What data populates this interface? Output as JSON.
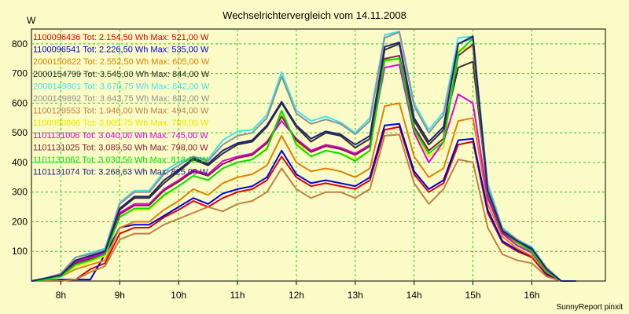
{
  "chart_data": {
    "type": "line",
    "title": "Wechselrichtervergleich vom 14.11.2008",
    "ylabel": "W",
    "xlabel": "",
    "x_unit": "hour",
    "xlim": [
      7.5,
      17.25
    ],
    "ylim": [
      0,
      850
    ],
    "x_ticks": [
      8,
      9,
      10,
      11,
      12,
      13,
      14,
      15,
      16
    ],
    "x_tick_labels": [
      "8h",
      "9h",
      "10h",
      "11h",
      "12h",
      "13h",
      "14h",
      "15h",
      "16h"
    ],
    "y_ticks": [
      100,
      200,
      300,
      400,
      500,
      600,
      700,
      800
    ],
    "y_tick_labels": [
      "100",
      "200",
      "300",
      "400",
      "500",
      "600",
      "700",
      "800"
    ],
    "grid": true,
    "legend_position": "top-left",
    "x": [
      7.5,
      7.75,
      8.0,
      8.25,
      8.5,
      8.75,
      9.0,
      9.25,
      9.5,
      9.75,
      10.0,
      10.25,
      10.5,
      10.75,
      11.0,
      11.25,
      11.5,
      11.75,
      12.0,
      12.25,
      12.5,
      12.75,
      13.0,
      13.25,
      13.5,
      13.75,
      14.0,
      14.25,
      14.5,
      14.75,
      15.0,
      15.25,
      15.5,
      15.75,
      16.0,
      16.25,
      16.5,
      16.75
    ],
    "series": [
      {
        "name": "1100096436 Tot: 2.154,50 Wh Max: 521,00 W",
        "color": "#e00000",
        "values": [
          0,
          0,
          0,
          5,
          40,
          60,
          160,
          180,
          180,
          215,
          240,
          270,
          250,
          280,
          300,
          310,
          340,
          420,
          350,
          320,
          330,
          320,
          310,
          340,
          510,
          520,
          360,
          300,
          330,
          460,
          470,
          230,
          130,
          100,
          80,
          20,
          0,
          0
        ]
      },
      {
        "name": "1100096541 Tot: 2.226,50 Wh Max: 535,00 W",
        "color": "#0000e0",
        "values": [
          0,
          0,
          5,
          5,
          5,
          90,
          180,
          190,
          190,
          220,
          250,
          280,
          260,
          295,
          310,
          320,
          350,
          440,
          360,
          330,
          340,
          330,
          320,
          350,
          525,
          530,
          370,
          310,
          340,
          475,
          480,
          240,
          135,
          105,
          85,
          25,
          0,
          0
        ]
      },
      {
        "name": "2000150622 Tot: 2.552,50 Wh Max: 605,00 W",
        "color": "#e08000",
        "values": [
          0,
          5,
          15,
          40,
          55,
          70,
          180,
          200,
          200,
          240,
          270,
          310,
          290,
          330,
          350,
          360,
          390,
          490,
          400,
          370,
          380,
          370,
          350,
          380,
          590,
          600,
          420,
          350,
          380,
          540,
          550,
          260,
          150,
          110,
          85,
          30,
          0,
          0
        ]
      },
      {
        "name": "2000154799 Tot: 3.545,00 Wh Max: 844,00 W",
        "color": "#303030",
        "values": [
          0,
          10,
          20,
          70,
          85,
          100,
          240,
          280,
          280,
          330,
          370,
          410,
          390,
          430,
          460,
          470,
          520,
          600,
          520,
          470,
          500,
          490,
          450,
          480,
          780,
          800,
          540,
          460,
          510,
          720,
          740,
          300,
          170,
          130,
          105,
          40,
          0,
          0
        ]
      },
      {
        "name": "2000149801 Tot: 3.670,75 Wh Max: 842,00 W",
        "color": "#40e0f0",
        "values": [
          0,
          10,
          25,
          80,
          95,
          110,
          265,
          305,
          305,
          370,
          400,
          420,
          410,
          475,
          505,
          510,
          560,
          705,
          575,
          540,
          555,
          535,
          500,
          550,
          830,
          842,
          600,
          510,
          570,
          820,
          825,
          330,
          180,
          140,
          115,
          45,
          0,
          0
        ]
      },
      {
        "name": "2000149892 Tot: 3.643,75 Wh Max: 842,00 W",
        "color": "#909090",
        "values": [
          0,
          10,
          25,
          80,
          90,
          105,
          260,
          300,
          300,
          360,
          390,
          420,
          405,
          460,
          490,
          500,
          550,
          690,
          565,
          530,
          545,
          530,
          495,
          540,
          820,
          840,
          590,
          500,
          560,
          800,
          820,
          320,
          175,
          140,
          110,
          45,
          0,
          0
        ]
      },
      {
        "name": "1100129553 Tot: 1.946,00 Wh Max: 494,00 W",
        "color": "#c08040",
        "values": [
          0,
          0,
          0,
          5,
          30,
          50,
          140,
          160,
          160,
          190,
          210,
          230,
          250,
          235,
          260,
          270,
          300,
          380,
          310,
          280,
          300,
          300,
          280,
          310,
          490,
          494,
          330,
          260,
          310,
          410,
          400,
          180,
          90,
          70,
          60,
          15,
          0,
          0
        ]
      },
      {
        "name": "1100090866 Tot: 3.005,75 Wh Max: 789,00 W",
        "color": "#e8e800",
        "values": [
          0,
          5,
          15,
          50,
          65,
          85,
          220,
          240,
          240,
          285,
          320,
          355,
          340,
          380,
          400,
          410,
          450,
          560,
          470,
          420,
          440,
          430,
          410,
          440,
          740,
          750,
          500,
          420,
          450,
          780,
          789,
          290,
          160,
          125,
          100,
          35,
          0,
          0
        ]
      },
      {
        "name": "1101131006 Tot: 3.040,00 Wh Max: 745,00 W",
        "color": "#e000e0",
        "values": [
          0,
          5,
          20,
          65,
          80,
          95,
          230,
          260,
          260,
          310,
          340,
          375,
          360,
          405,
          420,
          430,
          470,
          540,
          480,
          440,
          460,
          450,
          430,
          460,
          720,
          730,
          500,
          400,
          470,
          630,
          600,
          280,
          160,
          120,
          95,
          35,
          0,
          0
        ]
      },
      {
        "name": "1101131025 Tot: 3.089,50 Wh Max: 798,00 W",
        "color": "#802040",
        "values": [
          0,
          5,
          20,
          60,
          75,
          90,
          225,
          255,
          255,
          305,
          335,
          370,
          355,
          395,
          415,
          425,
          465,
          555,
          475,
          435,
          455,
          445,
          425,
          455,
          750,
          760,
          520,
          440,
          480,
          760,
          798,
          295,
          165,
          130,
          100,
          35,
          0,
          0
        ]
      },
      {
        "name": "1101131062 Tot: 3.030,50 Wh Max: 818,00 W",
        "color": "#00e000",
        "values": [
          0,
          5,
          15,
          55,
          70,
          90,
          215,
          245,
          245,
          290,
          320,
          355,
          340,
          380,
          400,
          410,
          445,
          575,
          460,
          420,
          440,
          430,
          405,
          440,
          745,
          750,
          510,
          430,
          470,
          770,
          818,
          300,
          170,
          130,
          100,
          35,
          0,
          0
        ]
      },
      {
        "name": "1101131074 Tot: 3.268,63 Wh Max: 825,00 W",
        "color": "#202080",
        "values": [
          0,
          10,
          20,
          70,
          85,
          100,
          245,
          285,
          285,
          340,
          375,
          415,
          395,
          440,
          465,
          475,
          525,
          605,
          525,
          480,
          505,
          495,
          460,
          490,
          790,
          805,
          550,
          470,
          520,
          800,
          825,
          305,
          170,
          135,
          110,
          40,
          0,
          0
        ]
      }
    ]
  },
  "footer": {
    "credit": "SunnyReport pinxit"
  }
}
